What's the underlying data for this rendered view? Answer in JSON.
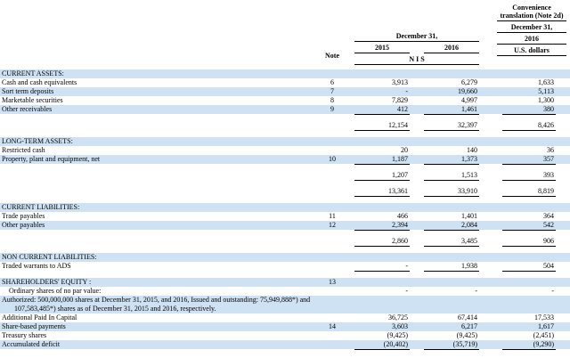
{
  "colors": {
    "row_highlight": "#cfe2f3"
  },
  "header": {
    "note": "Note",
    "nis": {
      "date": "December 31,",
      "y2015": "2015",
      "y2016": "2016",
      "unit": "N I S"
    },
    "usd": {
      "title": "Convenience translation (Note 2d)",
      "date": "December 31,",
      "year": "2016",
      "unit": "U.S. dollars"
    }
  },
  "rows": [
    {
      "label": "CURRENT ASSETS:"
    },
    {
      "label": "Cash and cash equivalents",
      "note": "6",
      "v2015": "3,913",
      "v2016": "6,279",
      "usd": "1,633"
    },
    {
      "label": "Sort term deposits",
      "note": "7",
      "v2015": "-",
      "v2016": "19,660",
      "usd": "5,113"
    },
    {
      "label": "Marketable securities",
      "note": "8",
      "v2015": "7,829",
      "v2016": "4,997",
      "usd": "1,300"
    },
    {
      "label": "Other receivables",
      "note": "9",
      "v2015": "412",
      "v2016": "1,461",
      "usd": "380"
    },
    {
      "v2015": "12,154",
      "v2016": "32,397",
      "usd": "8,426"
    },
    {
      "label": "LONG-TERM ASSETS:"
    },
    {
      "label": "Restricted cash",
      "v2015": "20",
      "v2016": "140",
      "usd": "36"
    },
    {
      "label": "Property, plant and equipment, net",
      "note": "10",
      "v2015": "1,187",
      "v2016": "1,373",
      "usd": "357"
    },
    {
      "v2015": "1,207",
      "v2016": "1,513",
      "usd": "393"
    },
    {
      "v2015": "13,361",
      "v2016": "33,910",
      "usd": "8,819"
    },
    {
      "label": "CURRENT LIABILITIES:"
    },
    {
      "label": "Trade payables",
      "note": "11",
      "v2015": "466",
      "v2016": "1,401",
      "usd": "364"
    },
    {
      "label": "Other payables",
      "note": "12",
      "v2015": "2,394",
      "v2016": "2,084",
      "usd": "542"
    },
    {
      "v2015": "2,860",
      "v2016": "3,485",
      "usd": "906"
    },
    {
      "label": "NON CURRENT LIABILITIES:"
    },
    {
      "label": "Traded warrants to ADS",
      "v2015": "-",
      "v2016": "1,938",
      "usd": "504"
    },
    {
      "label": "SHAREHOLDERS' EQUITY :",
      "note": "13"
    },
    {
      "label": "Ordinary shares of no par value:",
      "v2015": "-",
      "v2016": "-",
      "usd": "-"
    },
    {
      "label": "Authorized: 500,000,000 shares at December 31, 2015, and 2016, Issued and outstanding: 75,949,888*) and"
    },
    {
      "label": "107,583,485*) shares as of December 31, 2015 and 2016, respectively."
    },
    {
      "label": "Additional Paid In Capital",
      "v2015": "36,725",
      "v2016": "67,414",
      "usd": "17,533"
    },
    {
      "label": "Share-based payments",
      "note": "14",
      "v2015": "3,603",
      "v2016": "6,217",
      "usd": "1,617"
    },
    {
      "label": "Treasury shares",
      "v2015": "(9,425)",
      "v2016": "(9,425)",
      "usd": "(2,451)"
    },
    {
      "label": "Accumulated deficit",
      "v2015": "(20,402)",
      "v2016": "(35,719)",
      "usd": "(9,290)"
    }
  ]
}
